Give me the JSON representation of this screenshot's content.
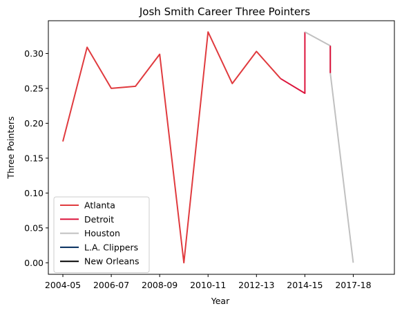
{
  "chart_data": {
    "type": "line",
    "title": "Josh Smith Career Three Pointers",
    "xlabel": "Year",
    "ylabel": "Three Pointers",
    "xlim": [
      -0.6,
      13.7
    ],
    "ylim": [
      -0.0165,
      0.347
    ],
    "x_ticks": [
      {
        "x": 0,
        "label": "2004-05"
      },
      {
        "x": 2,
        "label": "2006-07"
      },
      {
        "x": 4,
        "label": "2008-09"
      },
      {
        "x": 6,
        "label": "2010-11"
      },
      {
        "x": 8,
        "label": "2012-13"
      },
      {
        "x": 10,
        "label": "2014-15"
      },
      {
        "x": 12,
        "label": "2017-18"
      }
    ],
    "y_ticks": [
      {
        "y": 0.0,
        "label": "0.00"
      },
      {
        "y": 0.05,
        "label": "0.05"
      },
      {
        "y": 0.1,
        "label": "0.10"
      },
      {
        "y": 0.15,
        "label": "0.15"
      },
      {
        "y": 0.2,
        "label": "0.20"
      },
      {
        "y": 0.25,
        "label": "0.25"
      },
      {
        "y": 0.3,
        "label": "0.30"
      }
    ],
    "legend_position": "lower-left",
    "series": [
      {
        "name": "Atlanta",
        "color": "#e03a3e",
        "points": [
          [
            0,
            0.174
          ],
          [
            1,
            0.309
          ],
          [
            2,
            0.25
          ],
          [
            3,
            0.253
          ],
          [
            4,
            0.299
          ],
          [
            5,
            0.0
          ],
          [
            6,
            0.331
          ],
          [
            7,
            0.257
          ],
          [
            8,
            0.303
          ],
          [
            9,
            0.264
          ]
        ]
      },
      {
        "name": "Detroit",
        "color": "#dc143c",
        "points": [
          [
            9,
            0.264
          ],
          [
            10,
            0.243
          ],
          [
            10,
            0.331
          ]
        ]
      },
      {
        "name": "Houston",
        "color": "#c0c0c0",
        "points": [
          [
            10,
            0.331
          ],
          [
            11.05,
            0.311
          ],
          [
            11.05,
            0.272
          ],
          [
            12,
            0.0
          ]
        ]
      },
      {
        "name": "Detroit-2",
        "color": "#dc143c",
        "legend": false,
        "points": [
          [
            11.05,
            0.311
          ],
          [
            11.05,
            0.272
          ]
        ]
      },
      {
        "name": "L.A. Clippers",
        "color": "#002b5c",
        "points": []
      },
      {
        "name": "New Orleans",
        "color": "#000000",
        "points": []
      }
    ]
  }
}
